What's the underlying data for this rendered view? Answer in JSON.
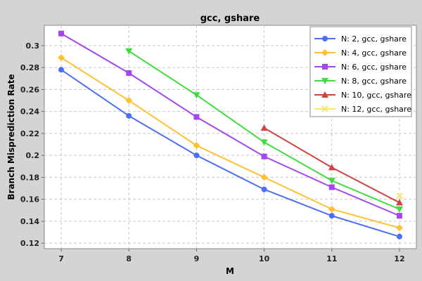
{
  "chart_data": {
    "type": "line",
    "title": "gcc, gshare",
    "xlabel": "M",
    "ylabel": "Branch Misprediction Rate",
    "x": [
      7,
      8,
      9,
      10,
      11,
      12
    ],
    "xlim": [
      6.75,
      12.25
    ],
    "ylim": [
      0.115,
      0.3185
    ],
    "yticks": [
      "0.12",
      "0.14",
      "0.16",
      "0.18",
      "0.2",
      "0.22",
      "0.24",
      "0.26",
      "0.28",
      "0.3"
    ],
    "xticks": [
      "7",
      "8",
      "9",
      "10",
      "11",
      "12"
    ],
    "grid": true,
    "legend_position": "top-right",
    "series": [
      {
        "name": "N: 2, gcc, gshare",
        "color": "#4a6ef5",
        "marker": "circle",
        "x": [
          7,
          8,
          9,
          10,
          11,
          12
        ],
        "values": [
          0.278,
          0.236,
          0.2,
          0.169,
          0.145,
          0.126
        ]
      },
      {
        "name": "N: 4, gcc, gshare",
        "color": "#ffc133",
        "marker": "diamond",
        "x": [
          7,
          8,
          9,
          10,
          11,
          12
        ],
        "values": [
          0.289,
          0.25,
          0.209,
          0.18,
          0.151,
          0.134
        ]
      },
      {
        "name": "N: 6, gcc, gshare",
        "color": "#a447f0",
        "marker": "square",
        "x": [
          7,
          8,
          9,
          10,
          11,
          12
        ],
        "values": [
          0.311,
          0.275,
          0.235,
          0.199,
          0.171,
          0.145
        ]
      },
      {
        "name": "N: 8, gcc, gshare",
        "color": "#3fdc3f",
        "marker": "triangle-down",
        "x": [
          8,
          9,
          10,
          11,
          12
        ],
        "values": [
          0.295,
          0.255,
          0.212,
          0.177,
          0.151
        ]
      },
      {
        "name": "N: 10, gcc, gshare",
        "color": "#d24040",
        "marker": "triangle-up",
        "x": [
          10,
          11,
          12
        ],
        "values": [
          0.225,
          0.189,
          0.157
        ]
      },
      {
        "name": "N: 12, gcc, gshare",
        "color": "#f7e66a",
        "marker": "x",
        "x": [
          12
        ],
        "values": [
          0.163
        ]
      }
    ]
  }
}
